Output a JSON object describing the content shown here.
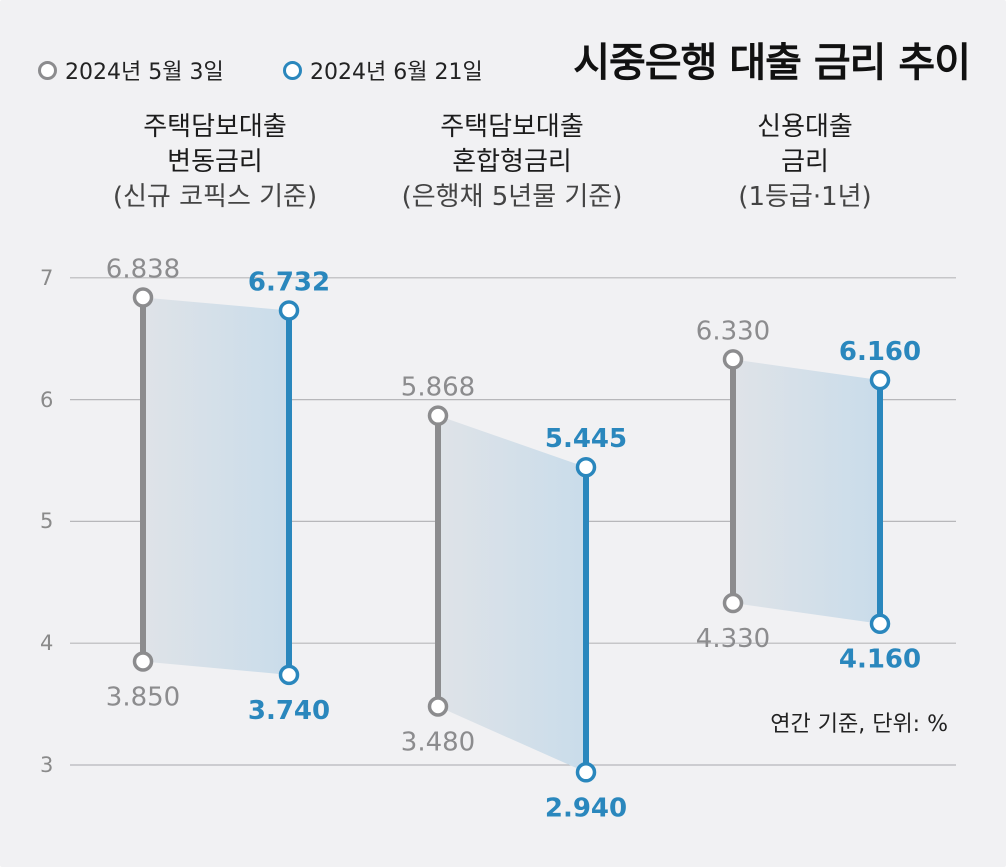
{
  "legend": {
    "date1": "2024년 5월 3일",
    "date2": "2024년 6월 21일"
  },
  "title": "시중은행 대출 금리 추이",
  "unit_note": "연간 기준, 단위: %",
  "colors": {
    "date1": "#8c8c8e",
    "date2": "#2a87bd",
    "band": "#c9dcea",
    "grid": "#b7b7ba",
    "background": "#f1f1f3"
  },
  "chart_data": {
    "type": "range",
    "title": "시중은행 대출 금리 추이",
    "yticks": [
      3,
      4,
      5,
      6,
      7
    ],
    "ylim": [
      3,
      7
    ],
    "grid": true,
    "categories": [
      {
        "line1": "주택담보대출",
        "line2": "변동금리",
        "line3": "(신규 코픽스 기준)"
      },
      {
        "line1": "주택담보대출",
        "line2": "혼합형금리",
        "line3": "(은행채 5년물 기준)"
      },
      {
        "line1": "신용대출",
        "line2": "금리",
        "line3": "(1등급·1년)"
      }
    ],
    "series": [
      {
        "name": "2024년 5월 3일",
        "high": [
          6.838,
          5.868,
          6.33
        ],
        "low": [
          3.85,
          3.48,
          4.33
        ],
        "high_labels": [
          "6.838",
          "5.868",
          "6.330"
        ],
        "low_labels": [
          "3.850",
          "3.480",
          "4.330"
        ]
      },
      {
        "name": "2024년 6월 21일",
        "high": [
          6.732,
          5.445,
          6.16
        ],
        "low": [
          3.74,
          2.94,
          4.16
        ],
        "high_labels": [
          "6.732",
          "5.445",
          "6.160"
        ],
        "low_labels": [
          "3.740",
          "2.940",
          "4.160"
        ]
      }
    ]
  }
}
